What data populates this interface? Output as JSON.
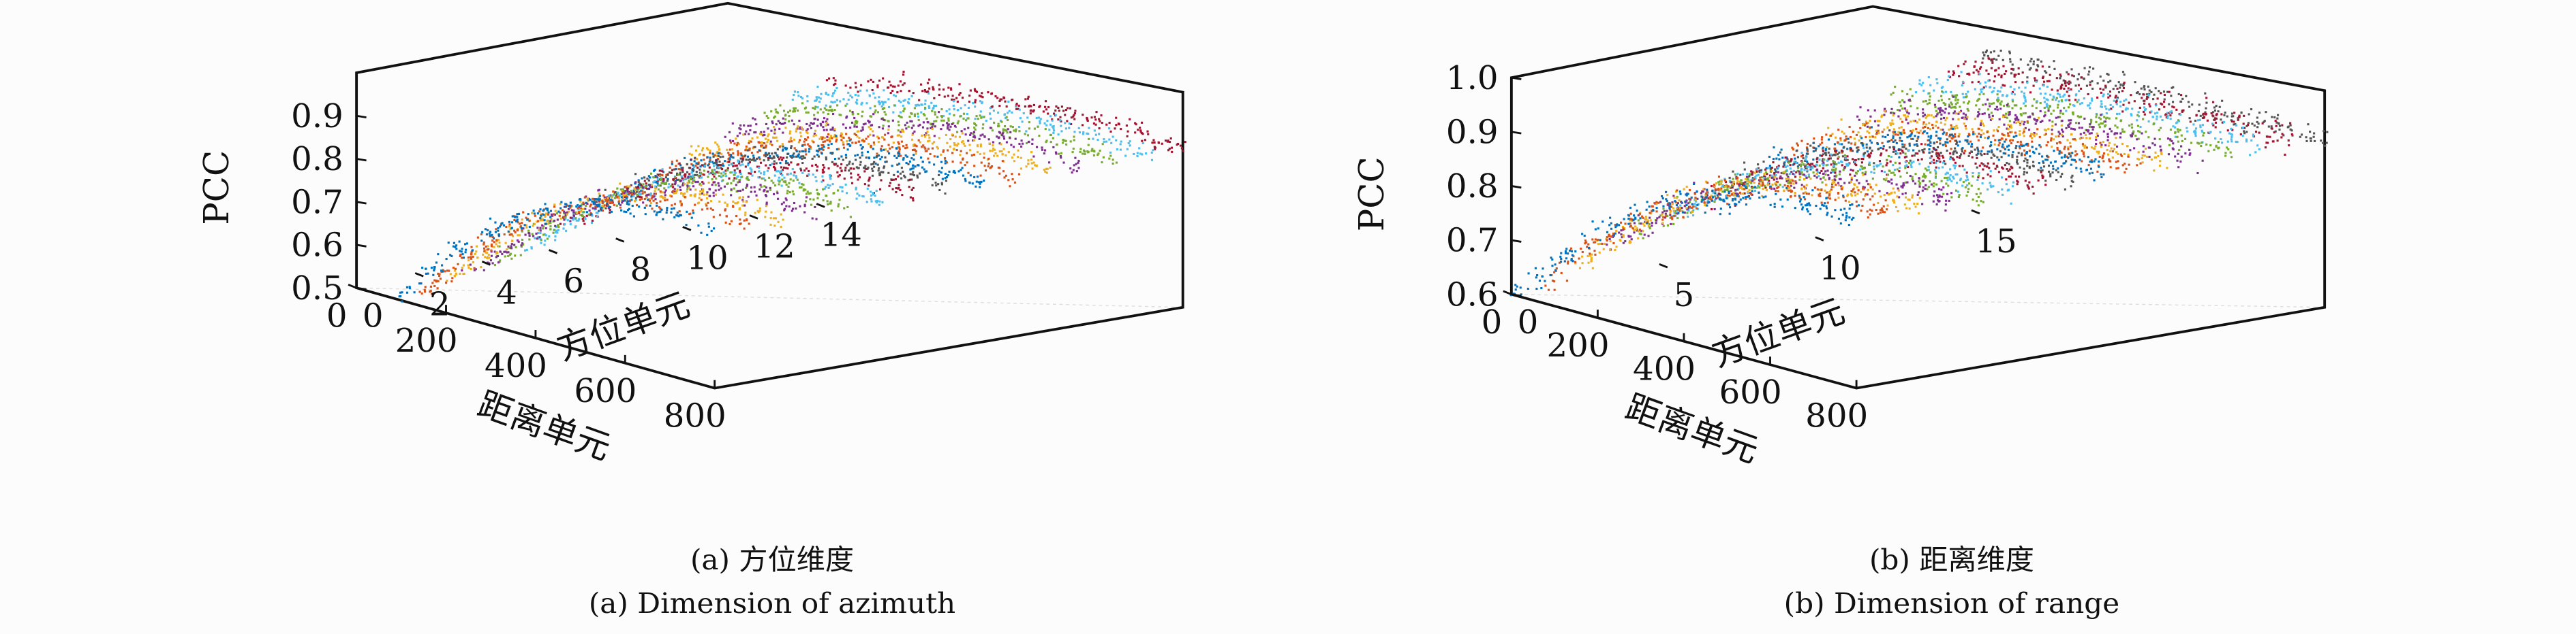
{
  "palette": [
    "#0072BD",
    "#D95319",
    "#EDB120",
    "#7E2F8E",
    "#77AC30",
    "#4DBEEE",
    "#A2142F",
    "#555555"
  ],
  "captions": {
    "a_cn": "(a) 方位维度",
    "a_en": "(a) Dimension of azimuth",
    "b_cn": "(b) 距离维度",
    "b_en": "(b) Dimension of range"
  },
  "chart_data": [
    {
      "type": "scatter",
      "projection": "3d",
      "zlabel": "PCC",
      "xlabel": "距离单元",
      "ylabel": "方位单元",
      "zlim": [
        0.5,
        1.0
      ],
      "xlim": [
        0,
        800
      ],
      "ylim": [
        0,
        14
      ],
      "ztick_labels": [
        "0.5",
        "0.6",
        "0.7",
        "0.8",
        "0.9"
      ],
      "ztick_values": [
        0.5,
        0.6,
        0.7,
        0.8,
        0.9
      ],
      "xtick_labels": [
        "800",
        "600",
        "400",
        "200",
        "0"
      ],
      "xtick_values": [
        800,
        600,
        400,
        200,
        0
      ],
      "ytick_labels": [
        "0",
        "2",
        "4",
        "6",
        "8",
        "10",
        "12",
        "14"
      ],
      "ytick_values": [
        0,
        2,
        4,
        6,
        8,
        10,
        12,
        14
      ],
      "range_samples": [
        800,
        700,
        600,
        500,
        400,
        300,
        200,
        100,
        0
      ],
      "series": [
        {
          "azimuth": 0,
          "values": [
            0.87,
            0.88,
            0.87,
            0.84,
            0.79,
            0.72,
            0.63,
            0.51,
            0.38
          ]
        },
        {
          "azimuth": 1,
          "values": [
            0.87,
            0.88,
            0.87,
            0.84,
            0.79,
            0.73,
            0.64,
            0.53,
            0.41
          ]
        },
        {
          "azimuth": 2,
          "values": [
            0.87,
            0.88,
            0.87,
            0.84,
            0.8,
            0.74,
            0.66,
            0.56,
            0.44
          ]
        },
        {
          "azimuth": 3,
          "values": [
            0.87,
            0.88,
            0.87,
            0.85,
            0.8,
            0.75,
            0.67,
            0.58,
            0.47
          ]
        },
        {
          "azimuth": 4,
          "values": [
            0.87,
            0.88,
            0.87,
            0.85,
            0.81,
            0.76,
            0.69,
            0.6,
            0.5
          ]
        },
        {
          "azimuth": 5,
          "values": [
            0.87,
            0.88,
            0.87,
            0.85,
            0.82,
            0.77,
            0.7,
            0.62,
            0.53
          ]
        },
        {
          "azimuth": 6,
          "values": [
            0.87,
            0.88,
            0.87,
            0.85,
            0.82,
            0.78,
            0.72,
            0.64,
            0.56
          ]
        },
        {
          "azimuth": 7,
          "values": [
            0.87,
            0.88,
            0.87,
            0.86,
            0.83,
            0.79,
            0.73,
            0.67,
            0.59
          ]
        },
        {
          "azimuth": 8,
          "values": [
            0.87,
            0.88,
            0.87,
            0.86,
            0.83,
            0.79,
            0.75,
            0.69,
            0.62
          ]
        },
        {
          "azimuth": 9,
          "values": [
            0.87,
            0.88,
            0.88,
            0.86,
            0.84,
            0.8,
            0.76,
            0.71,
            0.65
          ]
        },
        {
          "azimuth": 10,
          "values": [
            0.87,
            0.88,
            0.88,
            0.86,
            0.84,
            0.81,
            0.78,
            0.73,
            0.68
          ]
        },
        {
          "azimuth": 11,
          "values": [
            0.87,
            0.88,
            0.88,
            0.87,
            0.85,
            0.82,
            0.79,
            0.76,
            0.71
          ]
        },
        {
          "azimuth": 12,
          "values": [
            0.87,
            0.88,
            0.88,
            0.87,
            0.85,
            0.83,
            0.81,
            0.78,
            0.74
          ]
        },
        {
          "azimuth": 13,
          "values": [
            0.87,
            0.88,
            0.88,
            0.87,
            0.86,
            0.84,
            0.82,
            0.8,
            0.77
          ]
        },
        {
          "azimuth": 14,
          "values": [
            0.87,
            0.88,
            0.88,
            0.87,
            0.87,
            0.85,
            0.84,
            0.82,
            0.8
          ]
        }
      ]
    },
    {
      "type": "scatter",
      "projection": "3d",
      "zlabel": "PCC",
      "xlabel": "距离单元",
      "ylabel": "方位单元",
      "zlim": [
        0.6,
        1.0
      ],
      "xlim": [
        0,
        800
      ],
      "ylim": [
        0,
        15
      ],
      "ztick_labels": [
        "0.6",
        "0.7",
        "0.8",
        "0.9",
        "1.0"
      ],
      "ztick_values": [
        0.6,
        0.7,
        0.8,
        0.9,
        1.0
      ],
      "xtick_labels": [
        "800",
        "600",
        "400",
        "200",
        "0"
      ],
      "xtick_values": [
        800,
        600,
        400,
        200,
        0
      ],
      "ytick_labels": [
        "0",
        "5",
        "10",
        "15"
      ],
      "ytick_values": [
        0,
        5,
        10,
        15
      ],
      "range_samples": [
        800,
        700,
        600,
        500,
        400,
        300,
        200,
        100,
        0
      ],
      "series": [
        {
          "azimuth": 0,
          "values": [
            0.92,
            0.92,
            0.91,
            0.89,
            0.86,
            0.82,
            0.76,
            0.68,
            0.6
          ]
        },
        {
          "azimuth": 1,
          "values": [
            0.92,
            0.92,
            0.91,
            0.9,
            0.87,
            0.82,
            0.77,
            0.7,
            0.62
          ]
        },
        {
          "azimuth": 2,
          "values": [
            0.92,
            0.92,
            0.91,
            0.9,
            0.87,
            0.83,
            0.78,
            0.71,
            0.64
          ]
        },
        {
          "azimuth": 3,
          "values": [
            0.92,
            0.92,
            0.91,
            0.9,
            0.87,
            0.83,
            0.79,
            0.73,
            0.66
          ]
        },
        {
          "azimuth": 4,
          "values": [
            0.92,
            0.92,
            0.92,
            0.9,
            0.88,
            0.84,
            0.8,
            0.74,
            0.68
          ]
        },
        {
          "azimuth": 5,
          "values": [
            0.92,
            0.92,
            0.92,
            0.9,
            0.88,
            0.85,
            0.81,
            0.76,
            0.7
          ]
        },
        {
          "azimuth": 6,
          "values": [
            0.92,
            0.92,
            0.92,
            0.9,
            0.88,
            0.85,
            0.82,
            0.77,
            0.72
          ]
        },
        {
          "azimuth": 7,
          "values": [
            0.92,
            0.92,
            0.92,
            0.91,
            0.89,
            0.86,
            0.83,
            0.79,
            0.74
          ]
        },
        {
          "azimuth": 8,
          "values": [
            0.92,
            0.92,
            0.92,
            0.91,
            0.89,
            0.87,
            0.84,
            0.8,
            0.76
          ]
        },
        {
          "azimuth": 9,
          "values": [
            0.92,
            0.92,
            0.92,
            0.91,
            0.89,
            0.87,
            0.85,
            0.82,
            0.78
          ]
        },
        {
          "azimuth": 10,
          "values": [
            0.92,
            0.92,
            0.92,
            0.91,
            0.9,
            0.88,
            0.86,
            0.83,
            0.8
          ]
        },
        {
          "azimuth": 11,
          "values": [
            0.92,
            0.92,
            0.92,
            0.91,
            0.9,
            0.89,
            0.87,
            0.85,
            0.82
          ]
        },
        {
          "azimuth": 12,
          "values": [
            0.92,
            0.92,
            0.92,
            0.91,
            0.91,
            0.89,
            0.88,
            0.86,
            0.84
          ]
        },
        {
          "azimuth": 13,
          "values": [
            0.92,
            0.92,
            0.92,
            0.92,
            0.91,
            0.9,
            0.89,
            0.88,
            0.86
          ]
        },
        {
          "azimuth": 14,
          "values": [
            0.92,
            0.92,
            0.92,
            0.92,
            0.91,
            0.91,
            0.9,
            0.89,
            0.88
          ]
        },
        {
          "azimuth": 15,
          "values": [
            0.91,
            0.91,
            0.91,
            0.91,
            0.91,
            0.91,
            0.9,
            0.9,
            0.9
          ]
        }
      ]
    }
  ]
}
